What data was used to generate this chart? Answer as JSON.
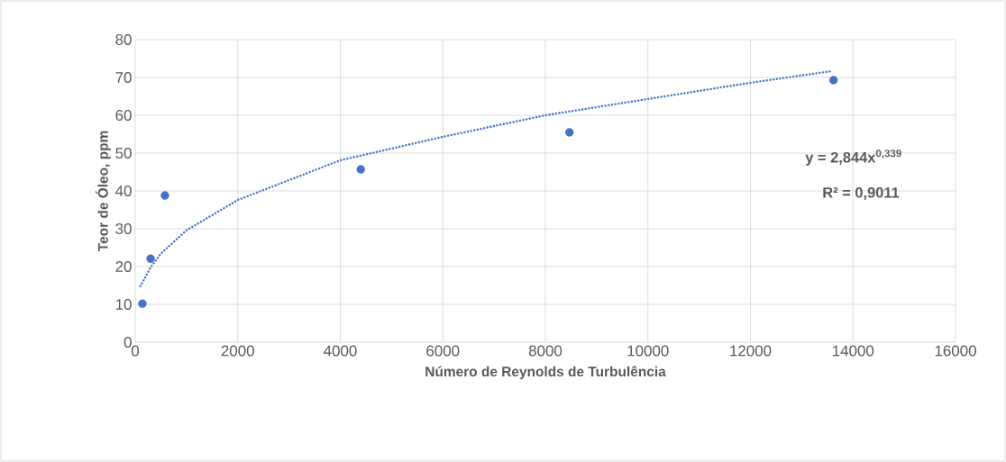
{
  "chart_data": {
    "type": "scatter",
    "xlabel": "Número de Reynolds de Turbulência",
    "ylabel": "Teor de Óleo, ppm",
    "xlim": [
      0,
      16000
    ],
    "ylim": [
      0,
      80
    ],
    "xticks": [
      0,
      2000,
      4000,
      6000,
      8000,
      10000,
      12000,
      14000,
      16000
    ],
    "yticks": [
      0,
      10,
      20,
      30,
      40,
      50,
      60,
      70,
      80
    ],
    "grid": true,
    "marker": "circle",
    "series": [
      {
        "color": "#4472c4",
        "x": [
          140,
          300,
          580,
          4400,
          8470,
          13620
        ],
        "values": [
          10.2,
          22.1,
          38.8,
          45.7,
          55.5,
          69.3
        ]
      },
      {
        "type": "line",
        "color": "#4472c4",
        "line_style": "dotted",
        "marker": "none",
        "x": [
          100,
          300,
          500,
          1000,
          2000,
          4000,
          6000,
          8000,
          10000,
          12000,
          13600
        ],
        "values": [
          14.8,
          19.8,
          23.4,
          29.6,
          37.6,
          48.1,
          54.3,
          60.0,
          64.3,
          68.6,
          71.7
        ]
      }
    ],
    "annotations": [
      "y = 2,844x$^{0,339}$",
      "R² = 0,9011"
    ]
  }
}
